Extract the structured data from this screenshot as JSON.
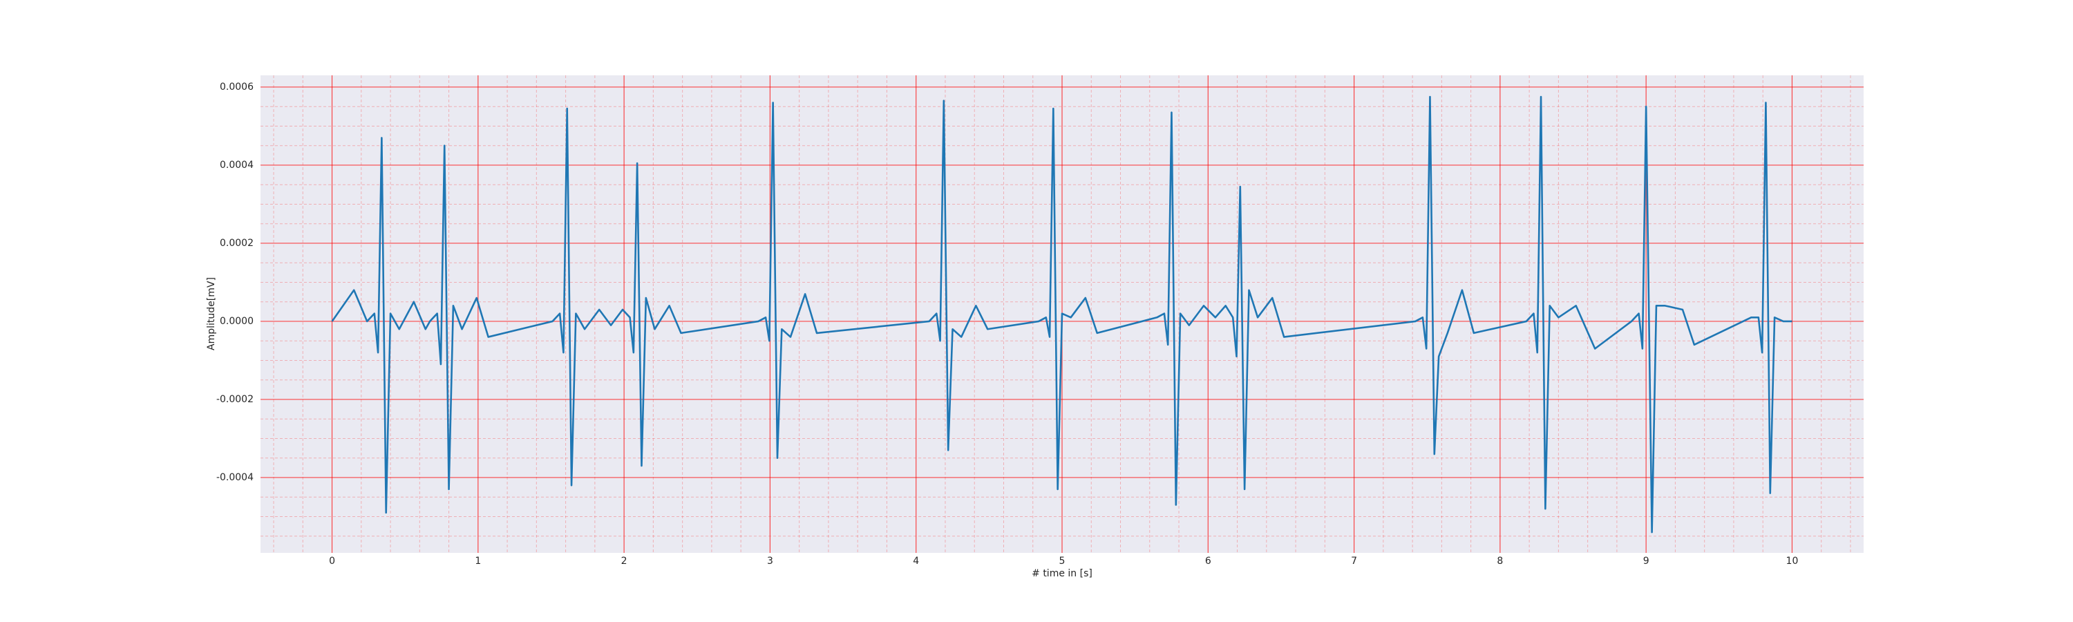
{
  "chart_data": {
    "type": "line",
    "xlabel": "# time in [s]",
    "ylabel": "Amplitude[mV]",
    "color": "#1f77b4",
    "background": "#eaeaf2",
    "grid_color": "#ff0000",
    "grid": true,
    "xlim": [
      -0.49,
      10.49
    ],
    "ylim": [
      -0.000593,
      0.00063
    ],
    "xticks": [
      0,
      1,
      2,
      3,
      4,
      5,
      6,
      7,
      8,
      9,
      10
    ],
    "yticks": [
      {
        "value": -0.0004,
        "label": "-0.0004"
      },
      {
        "value": -0.0002,
        "label": "-0.0002"
      },
      {
        "value": 0,
        "label": "0.0000"
      },
      {
        "value": 0.0002,
        "label": "0.0002"
      },
      {
        "value": 0.0004,
        "label": "0.0004"
      },
      {
        "value": 0.0006,
        "label": "0.0006"
      }
    ],
    "xticks_minor": [
      -0.4,
      -0.2,
      0.2,
      0.4,
      0.6,
      0.8,
      1.2,
      1.4,
      1.6,
      1.8,
      2.2,
      2.4,
      2.6,
      2.8,
      3.2,
      3.4,
      3.6,
      3.8,
      4.2,
      4.4,
      4.6,
      4.8,
      5.2,
      5.4,
      5.6,
      5.8,
      6.2,
      6.4,
      6.6,
      6.8,
      7.2,
      7.4,
      7.6,
      7.8,
      8.2,
      8.4,
      8.6,
      8.8,
      9.2,
      9.4,
      9.6,
      9.8,
      10.2,
      10.4
    ],
    "yticks_minor": [
      -0.00055,
      -0.0005,
      -0.00045,
      -0.00035,
      -0.0003,
      -0.00025,
      -0.00015,
      -0.0001,
      -5e-05,
      5e-05,
      0.0001,
      0.00015,
      0.00025,
      0.0003,
      0.00035,
      0.00045,
      0.0005,
      0.00055
    ],
    "x": [
      0,
      0.15,
      0.24,
      0.29,
      0.315,
      0.34,
      0.37,
      0.4,
      0.46,
      0.56,
      0.64,
      0.67,
      0.72,
      0.745,
      0.77,
      0.8,
      0.83,
      0.89,
      0.99,
      1.07,
      1.51,
      1.56,
      1.585,
      1.61,
      1.64,
      1.67,
      1.73,
      1.83,
      1.91,
      1.99,
      2.04,
      2.065,
      2.09,
      2.12,
      2.15,
      2.21,
      2.31,
      2.39,
      2.92,
      2.97,
      2.995,
      3.02,
      3.05,
      3.08,
      3.14,
      3.24,
      3.32,
      4.09,
      4.14,
      4.165,
      4.19,
      4.22,
      4.25,
      4.31,
      4.41,
      4.49,
      4.84,
      4.89,
      4.915,
      4.94,
      4.97,
      5.0,
      5.06,
      5.16,
      5.24,
      5.65,
      5.7,
      5.725,
      5.75,
      5.78,
      5.81,
      5.87,
      5.97,
      6.05,
      6.12,
      6.17,
      6.195,
      6.22,
      6.25,
      6.28,
      6.34,
      6.44,
      6.52,
      7.42,
      7.47,
      7.495,
      7.52,
      7.55,
      7.58,
      7.64,
      7.74,
      7.82,
      8.18,
      8.23,
      8.255,
      8.28,
      8.31,
      8.34,
      8.4,
      8.52,
      8.65,
      8.9,
      8.95,
      8.975,
      9.0,
      9.04,
      9.07,
      9.13,
      9.25,
      9.33,
      9.72,
      9.77,
      9.795,
      9.82,
      9.85,
      9.88,
      9.94,
      10.0
    ],
    "values": [
      0,
      8e-05,
      0,
      2e-05,
      -8e-05,
      0.00047,
      -0.00049,
      2e-05,
      -2e-05,
      5e-05,
      -2e-05,
      0,
      2e-05,
      -0.00011,
      0.00045,
      -0.00043,
      4e-05,
      -2e-05,
      6e-05,
      -4e-05,
      0,
      2e-05,
      -8e-05,
      0.000545,
      -0.00042,
      2e-05,
      -2e-05,
      3e-05,
      -1e-05,
      3e-05,
      1e-05,
      -8e-05,
      0.000405,
      -0.00037,
      6e-05,
      -2e-05,
      4e-05,
      -3e-05,
      0,
      1e-05,
      -5e-05,
      0.00056,
      -0.00035,
      -2e-05,
      -4e-05,
      7e-05,
      -3e-05,
      0,
      2e-05,
      -5e-05,
      0.000565,
      -0.00033,
      -2e-05,
      -4e-05,
      4e-05,
      -2e-05,
      0,
      1e-05,
      -4e-05,
      0.000545,
      -0.00043,
      2e-05,
      1e-05,
      6e-05,
      -3e-05,
      1e-05,
      2e-05,
      -6e-05,
      0.000535,
      -0.00047,
      2e-05,
      -1e-05,
      4e-05,
      1e-05,
      4e-05,
      1e-05,
      -9e-05,
      0.000345,
      -0.00043,
      8e-05,
      1e-05,
      6e-05,
      -4e-05,
      0,
      1e-05,
      -7e-05,
      0.000575,
      -0.00034,
      -9e-05,
      -3e-05,
      8e-05,
      -3e-05,
      0,
      2e-05,
      -8e-05,
      0.000575,
      -0.00048,
      4e-05,
      1e-05,
      4e-05,
      -7e-05,
      0,
      2e-05,
      -7e-05,
      0.00055,
      -0.00054,
      4e-05,
      4e-05,
      3e-05,
      -6e-05,
      1e-05,
      1e-05,
      -8e-05,
      0.00056,
      -0.00044,
      1e-05,
      0,
      0
    ]
  }
}
